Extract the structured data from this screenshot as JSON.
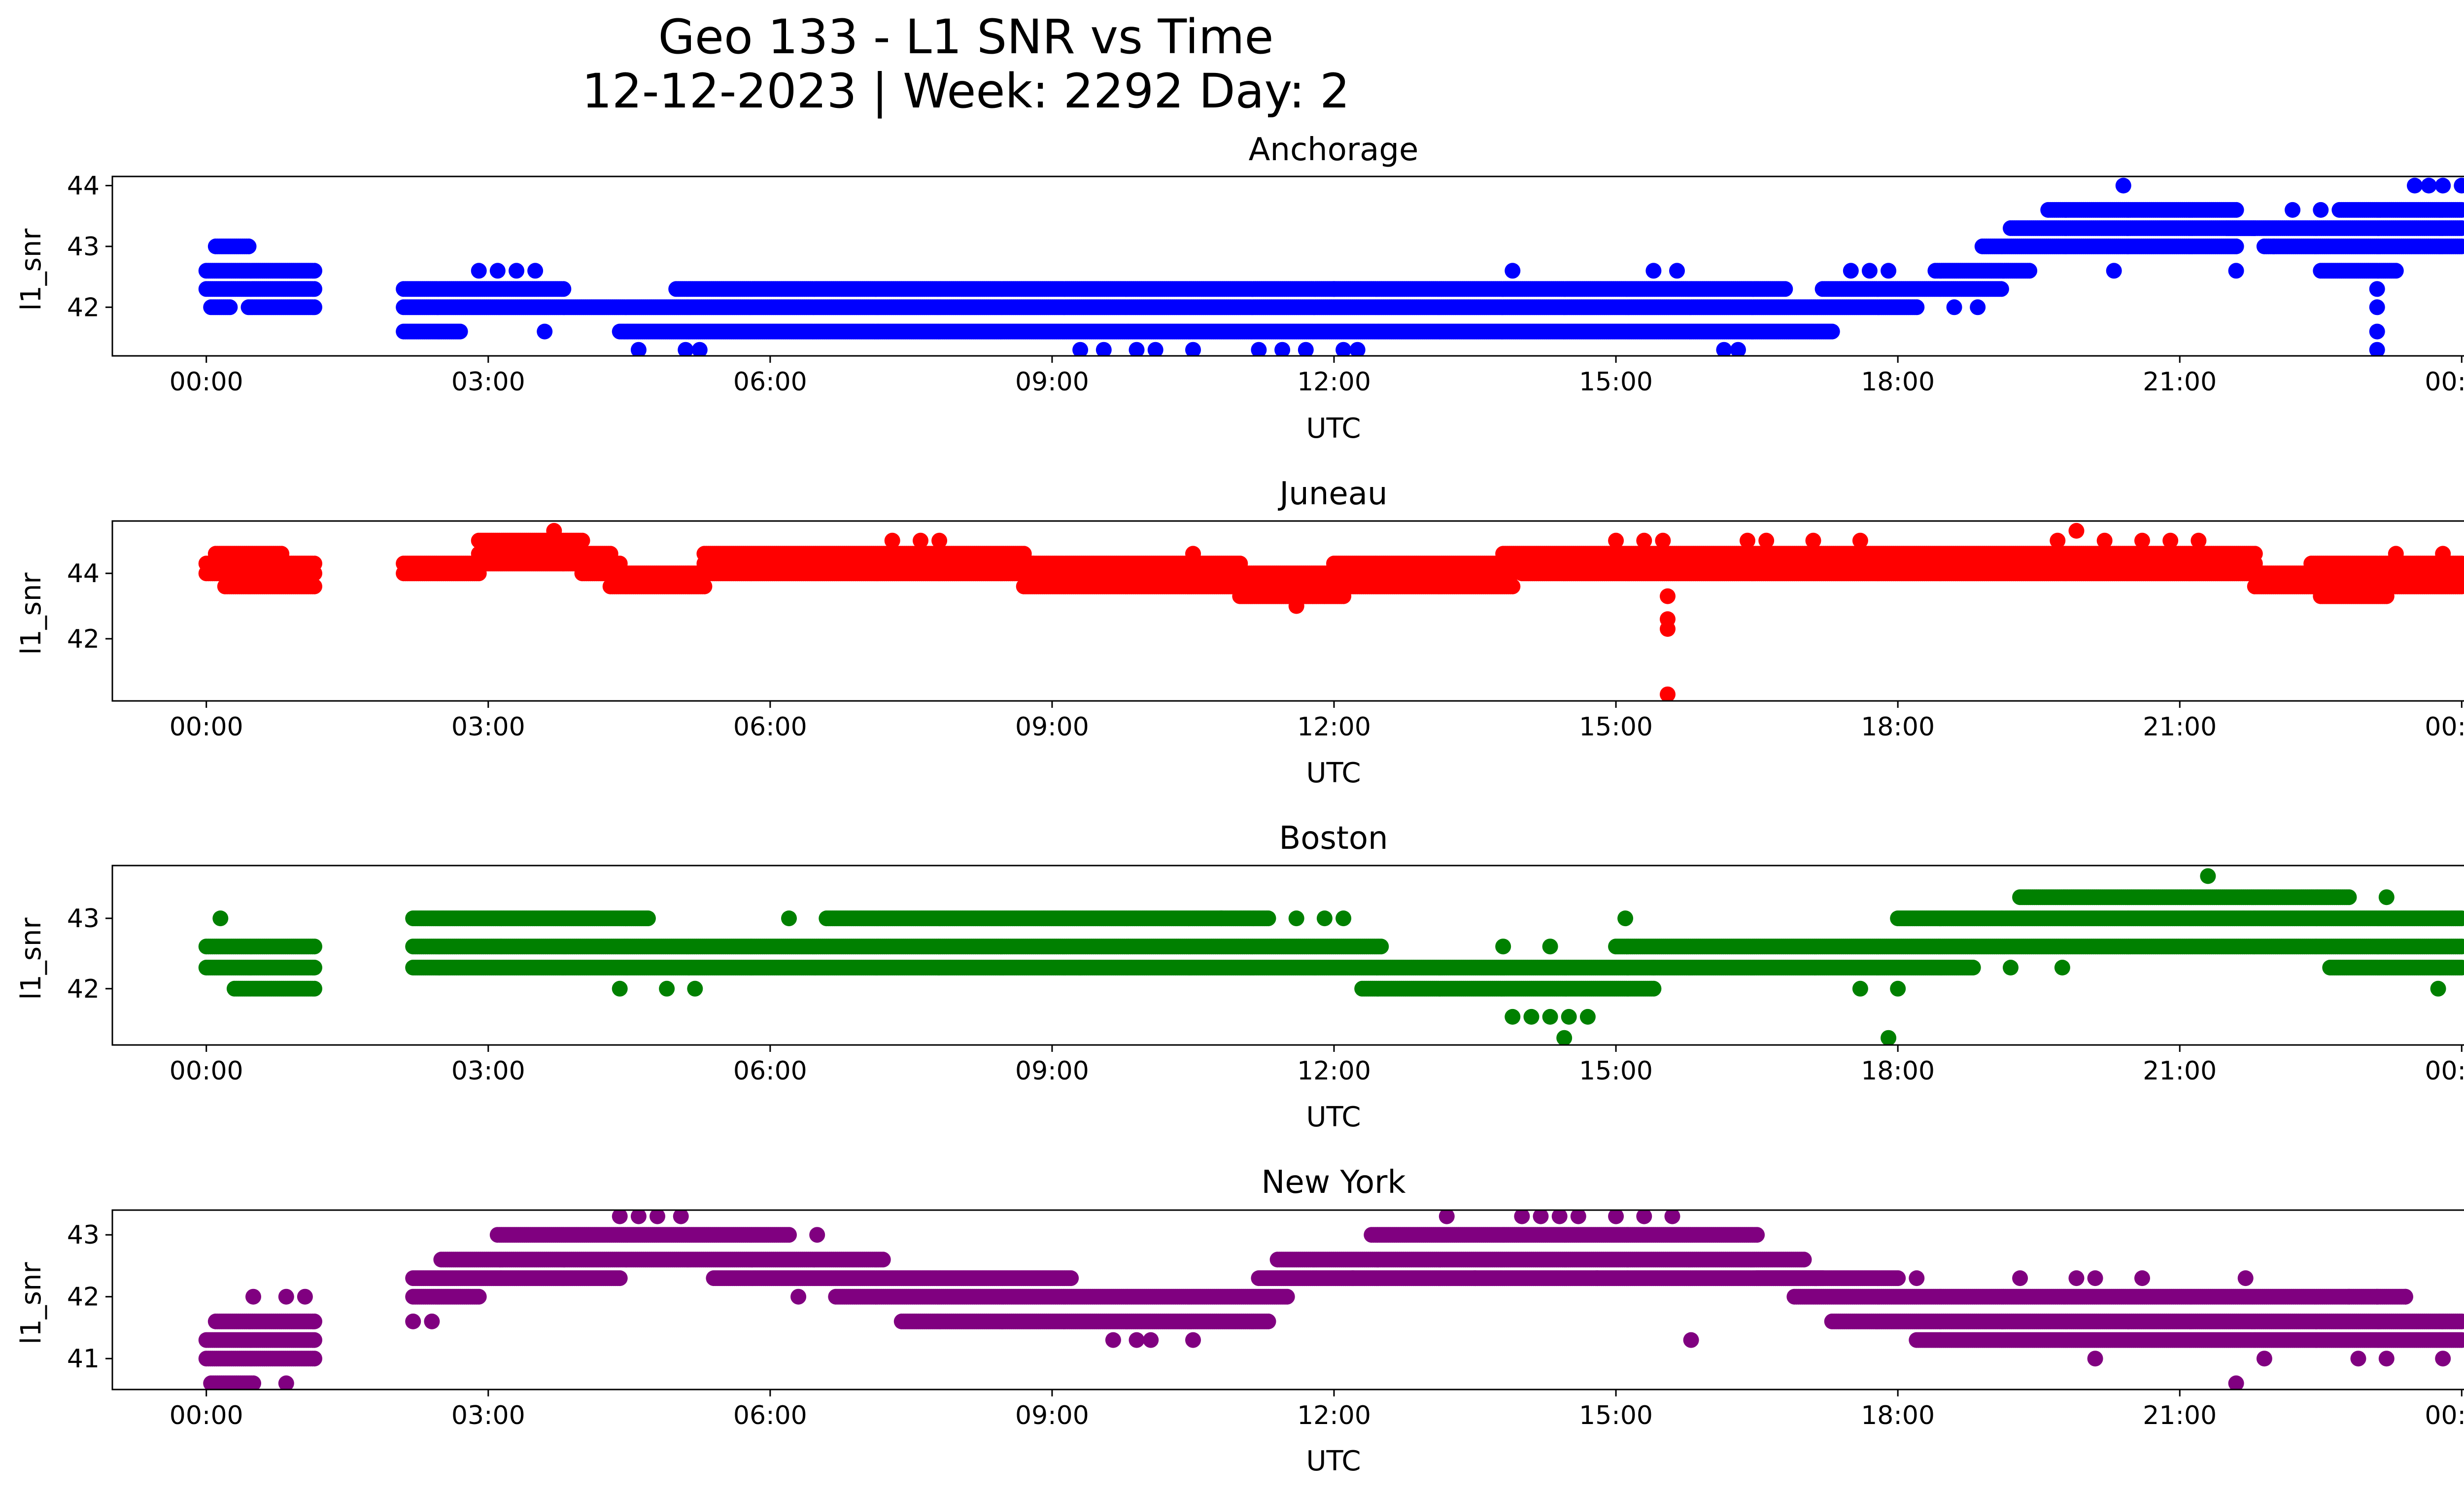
{
  "figure": {
    "title_line1": "Geo 133 - L1 SNR vs Time",
    "title_line2": "12-12-2023 | Week: 2292 Day: 2"
  },
  "chart_data": [
    {
      "type": "scatter",
      "title": "Anchorage",
      "color": "#0000ff",
      "xlabel": "UTC",
      "ylabel": "l1_snr",
      "xlim": [
        -1.0,
        25.0
      ],
      "ylim": [
        41.2,
        44.15
      ],
      "xticks": [
        0,
        3,
        6,
        9,
        12,
        15,
        18,
        21,
        24
      ],
      "xtick_labels": [
        "00:00",
        "03:00",
        "06:00",
        "09:00",
        "12:00",
        "15:00",
        "18:00",
        "21:00",
        "00:00"
      ],
      "yticks": [
        42,
        43,
        44
      ],
      "ytick_labels": [
        "42",
        "43",
        "44"
      ],
      "segments": [
        {
          "x": [
            0.0,
            1.15
          ],
          "y": 42.3
        },
        {
          "x": [
            0.0,
            1.15
          ],
          "y": 42.6
        },
        {
          "x": [
            0.05,
            0.25
          ],
          "y": 42.0
        },
        {
          "x": [
            0.45,
            1.15
          ],
          "y": 42.0
        },
        {
          "x": [
            0.1,
            0.45
          ],
          "y": 43.0
        },
        {
          "x": [
            2.1,
            18.2
          ],
          "y": 42.0
        },
        {
          "x": [
            2.1,
            3.8
          ],
          "y": 42.3
        },
        {
          "x": [
            2.1,
            2.7
          ],
          "y": 41.6
        },
        {
          "x": [
            4.4,
            17.3
          ],
          "y": 41.6
        },
        {
          "x": [
            5.0,
            16.8
          ],
          "y": 42.3
        },
        {
          "x": [
            17.2,
            19.1
          ],
          "y": 42.3
        },
        {
          "x": [
            18.4,
            19.4
          ],
          "y": 42.6
        },
        {
          "x": [
            18.9,
            21.6
          ],
          "y": 43.0
        },
        {
          "x": [
            19.2,
            21.8
          ],
          "y": 43.3
        },
        {
          "x": [
            21.5,
            24.0
          ],
          "y": 43.3
        },
        {
          "x": [
            21.9,
            24.0
          ],
          "y": 43.0
        },
        {
          "x": [
            19.6,
            21.6
          ],
          "y": 43.6
        },
        {
          "x": [
            22.7,
            24.0
          ],
          "y": 43.6
        },
        {
          "x": [
            22.5,
            23.3
          ],
          "y": 42.6
        }
      ],
      "points": [
        [
          2.9,
          42.6
        ],
        [
          3.1,
          42.6
        ],
        [
          3.3,
          42.6
        ],
        [
          3.5,
          42.6
        ],
        [
          3.6,
          41.6
        ],
        [
          4.6,
          41.3
        ],
        [
          5.1,
          41.3
        ],
        [
          5.25,
          41.3
        ],
        [
          9.3,
          41.3
        ],
        [
          9.55,
          41.3
        ],
        [
          9.9,
          41.3
        ],
        [
          10.1,
          41.3
        ],
        [
          10.5,
          41.3
        ],
        [
          11.2,
          41.3
        ],
        [
          11.45,
          41.3
        ],
        [
          11.7,
          41.3
        ],
        [
          12.1,
          41.3
        ],
        [
          12.25,
          41.3
        ],
        [
          12.0,
          42.3
        ],
        [
          13.9,
          42.6
        ],
        [
          15.4,
          42.6
        ],
        [
          15.65,
          42.6
        ],
        [
          16.15,
          41.3
        ],
        [
          16.3,
          41.3
        ],
        [
          17.5,
          42.6
        ],
        [
          17.7,
          42.6
        ],
        [
          17.9,
          42.6
        ],
        [
          18.6,
          42.0
        ],
        [
          18.85,
          42.0
        ],
        [
          20.4,
          44.0
        ],
        [
          20.3,
          42.6
        ],
        [
          21.6,
          42.6
        ],
        [
          22.2,
          43.6
        ],
        [
          22.5,
          43.6
        ],
        [
          22.0,
          43.0
        ],
        [
          23.1,
          42.3
        ],
        [
          23.1,
          42.0
        ],
        [
          23.1,
          41.6
        ],
        [
          23.1,
          41.3
        ],
        [
          23.5,
          44.0
        ],
        [
          23.65,
          44.0
        ],
        [
          23.8,
          44.0
        ],
        [
          24.0,
          44.0
        ]
      ]
    },
    {
      "type": "scatter",
      "title": "Juneau",
      "color": "#ff0000",
      "xlabel": "UTC",
      "ylabel": "l1_snr",
      "xlim": [
        -1.0,
        25.0
      ],
      "ylim": [
        40.1,
        45.6
      ],
      "xticks": [
        0,
        3,
        6,
        9,
        12,
        15,
        18,
        21,
        24
      ],
      "xtick_labels": [
        "00:00",
        "03:00",
        "06:00",
        "09:00",
        "12:00",
        "15:00",
        "18:00",
        "21:00",
        "00:00"
      ],
      "yticks": [
        42,
        44
      ],
      "ytick_labels": [
        "42",
        "44"
      ],
      "segments": [
        {
          "x": [
            0.0,
            1.15
          ],
          "y": 44.0
        },
        {
          "x": [
            0.0,
            1.15
          ],
          "y": 44.3
        },
        {
          "x": [
            0.1,
            0.8
          ],
          "y": 44.6
        },
        {
          "x": [
            0.2,
            1.15
          ],
          "y": 43.6
        },
        {
          "x": [
            2.1,
            4.4
          ],
          "y": 44.3
        },
        {
          "x": [
            2.1,
            2.9
          ],
          "y": 44.0
        },
        {
          "x": [
            2.9,
            4.3
          ],
          "y": 44.6
        },
        {
          "x": [
            2.9,
            4.0
          ],
          "y": 45.0
        },
        {
          "x": [
            4.0,
            8.8
          ],
          "y": 44.0
        },
        {
          "x": [
            4.3,
            5.3
          ],
          "y": 43.6
        },
        {
          "x": [
            5.3,
            8.8
          ],
          "y": 44.3
        },
        {
          "x": [
            5.3,
            8.7
          ],
          "y": 44.6
        },
        {
          "x": [
            8.7,
            13.9
          ],
          "y": 43.6
        },
        {
          "x": [
            8.7,
            13.9
          ],
          "y": 44.0
        },
        {
          "x": [
            8.7,
            11.0
          ],
          "y": 44.3
        },
        {
          "x": [
            11.0,
            12.1
          ],
          "y": 43.3
        },
        {
          "x": [
            12.0,
            13.8
          ],
          "y": 44.3
        },
        {
          "x": [
            13.8,
            21.8
          ],
          "y": 44.3
        },
        {
          "x": [
            13.8,
            21.8
          ],
          "y": 44.6
        },
        {
          "x": [
            14.0,
            21.8
          ],
          "y": 44.0
        },
        {
          "x": [
            21.8,
            24.0
          ],
          "y": 44.0
        },
        {
          "x": [
            21.8,
            24.0
          ],
          "y": 43.6
        },
        {
          "x": [
            22.4,
            24.0
          ],
          "y": 44.3
        },
        {
          "x": [
            22.5,
            23.2
          ],
          "y": 43.3
        }
      ],
      "points": [
        [
          3.7,
          45.3
        ],
        [
          7.3,
          45.0
        ],
        [
          7.6,
          45.0
        ],
        [
          7.8,
          45.0
        ],
        [
          10.5,
          44.6
        ],
        [
          11.6,
          43.0
        ],
        [
          11.9,
          43.3
        ],
        [
          15.0,
          45.0
        ],
        [
          15.3,
          45.0
        ],
        [
          15.5,
          45.0
        ],
        [
          15.55,
          43.3
        ],
        [
          15.55,
          42.6
        ],
        [
          15.55,
          42.3
        ],
        [
          15.55,
          40.3
        ],
        [
          16.4,
          45.0
        ],
        [
          16.6,
          45.0
        ],
        [
          17.1,
          45.0
        ],
        [
          17.6,
          45.0
        ],
        [
          19.7,
          45.0
        ],
        [
          19.9,
          45.3
        ],
        [
          20.2,
          45.0
        ],
        [
          20.6,
          45.0
        ],
        [
          20.9,
          45.0
        ],
        [
          21.2,
          45.0
        ],
        [
          23.3,
          44.6
        ],
        [
          23.8,
          44.6
        ]
      ]
    },
    {
      "type": "scatter",
      "title": "Boston",
      "color": "#008000",
      "xlabel": "UTC",
      "ylabel": "l1_snr",
      "xlim": [
        -1.0,
        25.0
      ],
      "ylim": [
        41.2,
        43.75
      ],
      "xticks": [
        0,
        3,
        6,
        9,
        12,
        15,
        18,
        21,
        24
      ],
      "xtick_labels": [
        "00:00",
        "03:00",
        "06:00",
        "09:00",
        "12:00",
        "15:00",
        "18:00",
        "21:00",
        "00:00"
      ],
      "yticks": [
        42,
        43
      ],
      "ytick_labels": [
        "42",
        "43"
      ],
      "segments": [
        {
          "x": [
            0.0,
            1.15
          ],
          "y": 42.3
        },
        {
          "x": [
            0.0,
            1.15
          ],
          "y": 42.6
        },
        {
          "x": [
            0.3,
            1.15
          ],
          "y": 42.0
        },
        {
          "x": [
            2.2,
            12.5
          ],
          "y": 42.6
        },
        {
          "x": [
            2.2,
            4.7
          ],
          "y": 43.0
        },
        {
          "x": [
            2.2,
            9.3
          ],
          "y": 42.3
        },
        {
          "x": [
            6.6,
            10.8
          ],
          "y": 43.0
        },
        {
          "x": [
            9.3,
            15.4
          ],
          "y": 42.3
        },
        {
          "x": [
            10.8,
            11.3
          ],
          "y": 43.0
        },
        {
          "x": [
            12.3,
            15.4
          ],
          "y": 42.0
        },
        {
          "x": [
            15.0,
            24.0
          ],
          "y": 42.6
        },
        {
          "x": [
            15.4,
            18.8
          ],
          "y": 42.3
        },
        {
          "x": [
            18.0,
            24.0
          ],
          "y": 43.0
        },
        {
          "x": [
            19.3,
            22.8
          ],
          "y": 43.3
        },
        {
          "x": [
            22.6,
            24.0
          ],
          "y": 42.3
        }
      ],
      "points": [
        [
          0.15,
          43.0
        ],
        [
          4.4,
          42.0
        ],
        [
          4.9,
          42.0
        ],
        [
          5.2,
          42.0
        ],
        [
          6.2,
          43.0
        ],
        [
          11.6,
          43.0
        ],
        [
          11.9,
          43.0
        ],
        [
          12.1,
          43.0
        ],
        [
          13.8,
          42.6
        ],
        [
          14.3,
          42.6
        ],
        [
          13.9,
          41.6
        ],
        [
          14.1,
          41.6
        ],
        [
          14.3,
          41.6
        ],
        [
          14.5,
          41.6
        ],
        [
          14.7,
          41.6
        ],
        [
          14.45,
          41.3
        ],
        [
          15.1,
          43.0
        ],
        [
          17.6,
          42.0
        ],
        [
          17.9,
          41.3
        ],
        [
          18.0,
          42.0
        ],
        [
          19.2,
          42.3
        ],
        [
          19.75,
          42.3
        ],
        [
          21.3,
          43.6
        ],
        [
          23.2,
          43.3
        ],
        [
          23.75,
          42.0
        ]
      ]
    },
    {
      "type": "scatter",
      "title": "New York",
      "color": "#800080",
      "xlabel": "UTC",
      "ylabel": "l1_snr",
      "xlim": [
        -1.0,
        25.0
      ],
      "ylim": [
        40.5,
        43.4
      ],
      "xticks": [
        0,
        3,
        6,
        9,
        12,
        15,
        18,
        21,
        24
      ],
      "xtick_labels": [
        "00:00",
        "03:00",
        "06:00",
        "09:00",
        "12:00",
        "15:00",
        "18:00",
        "21:00",
        "00:00"
      ],
      "yticks": [
        41,
        42,
        43
      ],
      "ytick_labels": [
        "41",
        "42",
        "43"
      ],
      "segments": [
        {
          "x": [
            0.0,
            1.15
          ],
          "y": 41.0
        },
        {
          "x": [
            0.0,
            1.15
          ],
          "y": 41.3
        },
        {
          "x": [
            0.05,
            0.5
          ],
          "y": 40.6
        },
        {
          "x": [
            0.1,
            1.15
          ],
          "y": 41.6
        },
        {
          "x": [
            2.2,
            2.9
          ],
          "y": 42.0
        },
        {
          "x": [
            2.2,
            4.4
          ],
          "y": 42.3
        },
        {
          "x": [
            2.5,
            7.2
          ],
          "y": 42.6
        },
        {
          "x": [
            3.1,
            6.2
          ],
          "y": 43.0
        },
        {
          "x": [
            5.4,
            9.2
          ],
          "y": 42.3
        },
        {
          "x": [
            6.7,
            11.5
          ],
          "y": 42.0
        },
        {
          "x": [
            7.4,
            11.3
          ],
          "y": 41.6
        },
        {
          "x": [
            11.2,
            17.2
          ],
          "y": 42.3
        },
        {
          "x": [
            11.4,
            17.0
          ],
          "y": 42.6
        },
        {
          "x": [
            12.4,
            16.5
          ],
          "y": 43.0
        },
        {
          "x": [
            16.5,
            18.0
          ],
          "y": 42.3
        },
        {
          "x": [
            16.9,
            23.4
          ],
          "y": 42.0
        },
        {
          "x": [
            17.3,
            24.0
          ],
          "y": 41.6
        },
        {
          "x": [
            18.2,
            24.0
          ],
          "y": 41.3
        }
      ],
      "points": [
        [
          0.5,
          42.0
        ],
        [
          0.85,
          42.0
        ],
        [
          1.05,
          42.0
        ],
        [
          0.85,
          40.6
        ],
        [
          2.2,
          41.6
        ],
        [
          2.4,
          41.6
        ],
        [
          4.4,
          43.3
        ],
        [
          4.6,
          43.3
        ],
        [
          4.8,
          43.3
        ],
        [
          5.05,
          43.3
        ],
        [
          6.3,
          42.0
        ],
        [
          6.5,
          43.0
        ],
        [
          9.65,
          41.3
        ],
        [
          9.9,
          41.3
        ],
        [
          10.05,
          41.3
        ],
        [
          10.5,
          41.3
        ],
        [
          12.2,
          42.3
        ],
        [
          13.2,
          43.3
        ],
        [
          13.5,
          42.3
        ],
        [
          14.0,
          43.3
        ],
        [
          14.2,
          43.3
        ],
        [
          14.4,
          43.3
        ],
        [
          14.6,
          43.3
        ],
        [
          15.0,
          43.3
        ],
        [
          15.3,
          43.3
        ],
        [
          15.6,
          43.3
        ],
        [
          14.8,
          42.3
        ],
        [
          15.8,
          41.3
        ],
        [
          18.2,
          42.3
        ],
        [
          19.3,
          42.3
        ],
        [
          19.9,
          42.3
        ],
        [
          20.1,
          42.3
        ],
        [
          20.6,
          42.3
        ],
        [
          20.1,
          41.0
        ],
        [
          21.7,
          42.3
        ],
        [
          21.6,
          40.6
        ],
        [
          21.9,
          41.0
        ],
        [
          22.8,
          42.0
        ],
        [
          23.1,
          42.0
        ],
        [
          23.4,
          42.0
        ],
        [
          22.9,
          41.0
        ],
        [
          23.2,
          41.0
        ],
        [
          23.8,
          41.0
        ]
      ]
    }
  ]
}
